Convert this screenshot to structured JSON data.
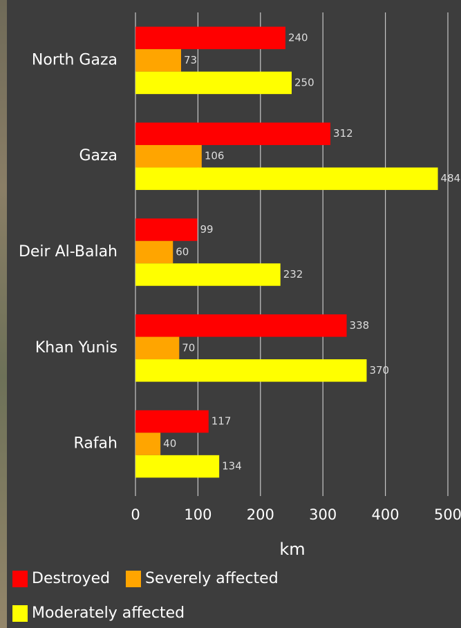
{
  "chart_data": {
    "type": "bar",
    "orientation": "horizontal",
    "categories": [
      "North Gaza",
      "Gaza",
      "Deir Al-Balah",
      "Khan Yunis",
      "Rafah"
    ],
    "series": [
      {
        "name": "Destroyed",
        "color": "#ff0000",
        "values": [
          240,
          312,
          99,
          338,
          117
        ]
      },
      {
        "name": "Severely affected",
        "color": "#ffa500",
        "values": [
          73,
          106,
          60,
          70,
          40
        ]
      },
      {
        "name": "Moderately affected",
        "color": "#ffff00",
        "values": [
          250,
          484,
          232,
          370,
          134
        ]
      }
    ],
    "x_label": "km",
    "xlim": [
      0,
      500
    ],
    "xticks": [
      0,
      100,
      200,
      300,
      400,
      500
    ],
    "grid": true,
    "legend": "bottom-left"
  }
}
